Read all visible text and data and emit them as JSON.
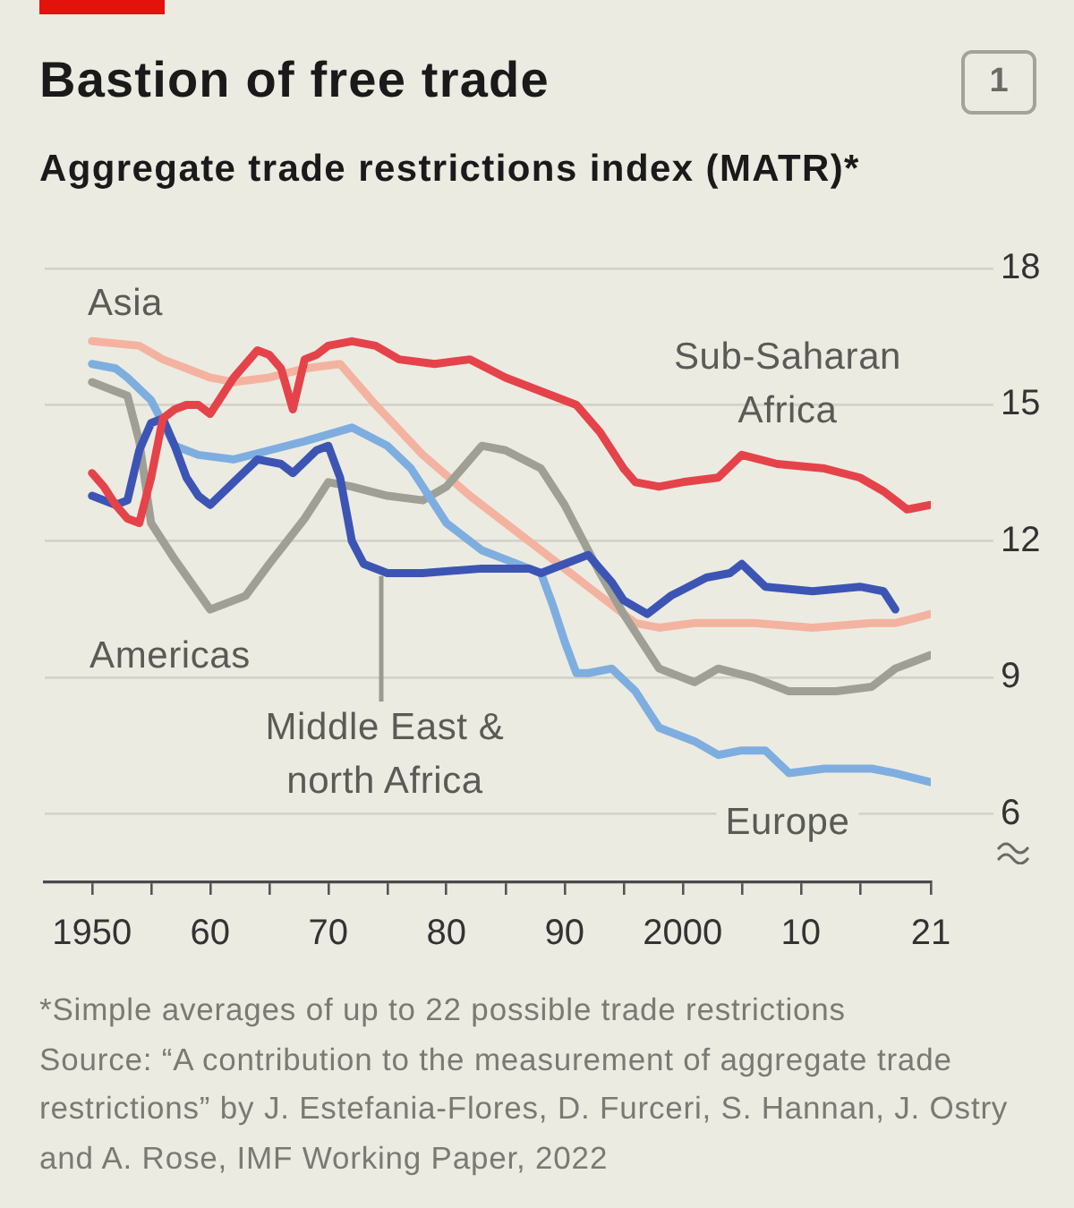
{
  "chart_data": {
    "type": "line",
    "title": "Bastion of free trade",
    "subtitle": "Aggregate trade restrictions index (MATR)*",
    "annotations": [
      "1",
      "*Simple averages of up to 22 possible trade restrictions",
      "Source: “A contribution to the measurement of aggregate trade restrictions” by J. Estefania-Flores, D. Furceri, S. Hannan, J. Ostry and A. Rose, IMF Working Paper, 2022"
    ],
    "xlim": [
      1946,
      2021
    ],
    "xticks": [
      1950,
      {
        "value": 1955,
        "label": null
      },
      {
        "value": 1960,
        "label": "60"
      },
      {
        "value": 1965,
        "label": null
      },
      {
        "value": 1970,
        "label": "70"
      },
      {
        "value": 1975,
        "label": null
      },
      {
        "value": 1980,
        "label": "80"
      },
      {
        "value": 1985,
        "label": null
      },
      {
        "value": 1990,
        "label": "90"
      },
      {
        "value": 1995,
        "label": null
      },
      2000,
      {
        "value": 2005,
        "label": null
      },
      {
        "value": 2010,
        "label": "10"
      },
      {
        "value": 2015,
        "label": null
      },
      {
        "value": 2021,
        "label": "21"
      }
    ],
    "ylim": [
      4.5,
      18
    ],
    "yticks": [
      6,
      9,
      12,
      15,
      18
    ],
    "grid": "y",
    "legend": false,
    "marker": "none",
    "series": [
      {
        "name": "Sub-Saharan Africa",
        "color": "#e5434a",
        "x": [
          1950,
          1951,
          1952,
          1953,
          1954,
          1955,
          1956,
          1957,
          1958,
          1959,
          1960,
          1961,
          1962,
          1963,
          1964,
          1965,
          1966,
          1967,
          1968,
          1969,
          1970,
          1972,
          1974,
          1976,
          1979,
          1982,
          1985,
          1988,
          1991,
          1993,
          1995,
          1996,
          1998,
          2000,
          2003,
          2005,
          2008,
          2012,
          2015,
          2017,
          2018,
          2019,
          2021
        ],
        "values": [
          13.5,
          13.2,
          12.8,
          12.5,
          12.4,
          13.4,
          14.7,
          14.9,
          15.0,
          15.0,
          14.8,
          15.2,
          15.6,
          15.9,
          16.2,
          16.1,
          15.8,
          14.9,
          16.0,
          16.1,
          16.3,
          16.4,
          16.3,
          16.0,
          15.9,
          16.0,
          15.6,
          15.3,
          15.0,
          14.4,
          13.6,
          13.3,
          13.2,
          13.3,
          13.4,
          13.9,
          13.7,
          13.6,
          13.4,
          13.1,
          12.9,
          12.7,
          12.8
        ]
      },
      {
        "name": "Middle East & north Africa",
        "color": "#3c55b4",
        "x": [
          1950,
          1952,
          1953,
          1954,
          1955,
          1956,
          1957,
          1958,
          1959,
          1960,
          1962,
          1964,
          1966,
          1967,
          1969,
          1970,
          1971,
          1972,
          1973,
          1975,
          1978,
          1983,
          1987,
          1988,
          1990,
          1992,
          1994,
          1995,
          1997,
          1999,
          2002,
          2004,
          2005,
          2007,
          2011,
          2015,
          2017,
          2018
        ],
        "values": [
          13.0,
          12.8,
          12.9,
          14.0,
          14.6,
          14.7,
          14.1,
          13.4,
          13.0,
          12.8,
          13.3,
          13.8,
          13.7,
          13.5,
          14.0,
          14.1,
          13.4,
          12.0,
          11.5,
          11.3,
          11.3,
          11.4,
          11.4,
          11.3,
          11.5,
          11.7,
          11.1,
          10.7,
          10.4,
          10.8,
          11.2,
          11.3,
          11.5,
          11.0,
          10.9,
          11.0,
          10.9,
          10.5
        ]
      },
      {
        "name": "Europe",
        "color": "#7eaee0",
        "x": [
          1950,
          1952,
          1953,
          1955,
          1956,
          1957,
          1959,
          1962,
          1965,
          1968,
          1972,
          1975,
          1977,
          1978,
          1980,
          1983,
          1987,
          1988,
          1989,
          1990,
          1991,
          1992,
          1994,
          1996,
          1998,
          2001,
          2003,
          2005,
          2007,
          2009,
          2012,
          2016,
          2018,
          2021
        ],
        "values": [
          15.9,
          15.8,
          15.6,
          15.1,
          14.6,
          14.1,
          13.9,
          13.8,
          14.0,
          14.2,
          14.5,
          14.1,
          13.6,
          13.2,
          12.4,
          11.8,
          11.4,
          11.3,
          10.6,
          9.8,
          9.1,
          9.1,
          9.2,
          8.7,
          7.9,
          7.6,
          7.3,
          7.4,
          7.4,
          6.9,
          7.0,
          7.0,
          6.9,
          6.7
        ]
      },
      {
        "name": "Americas",
        "color": "#9f9f96",
        "x": [
          1950,
          1952,
          1953,
          1954,
          1955,
          1957,
          1960,
          1963,
          1965,
          1968,
          1970,
          1972,
          1975,
          1978,
          1980,
          1983,
          1985,
          1988,
          1990,
          1993,
          1995,
          1997,
          1998,
          2001,
          2003,
          2006,
          2009,
          2013,
          2016,
          2018,
          2021
        ],
        "values": [
          15.5,
          15.3,
          15.2,
          14.2,
          12.4,
          11.6,
          10.5,
          10.8,
          11.5,
          12.5,
          13.3,
          13.2,
          13.0,
          12.9,
          13.2,
          14.1,
          14.0,
          13.6,
          12.8,
          11.3,
          10.4,
          9.6,
          9.2,
          8.9,
          9.2,
          9.0,
          8.7,
          8.7,
          8.8,
          9.2,
          9.5
        ]
      },
      {
        "name": "Asia",
        "color": "#f4b3a0",
        "x": [
          1950,
          1954,
          1956,
          1958,
          1960,
          1962,
          1965,
          1968,
          1971,
          1974,
          1978,
          1982,
          1985,
          1988,
          1990,
          1992,
          1994,
          1996,
          1998,
          2001,
          2006,
          2011,
          2016,
          2018,
          2021
        ],
        "values": [
          16.4,
          16.3,
          16.0,
          15.8,
          15.6,
          15.5,
          15.6,
          15.8,
          15.9,
          15.0,
          13.9,
          13.0,
          12.4,
          11.8,
          11.4,
          11.0,
          10.6,
          10.2,
          10.1,
          10.2,
          10.2,
          10.1,
          10.2,
          10.2,
          10.4
        ]
      }
    ]
  }
}
